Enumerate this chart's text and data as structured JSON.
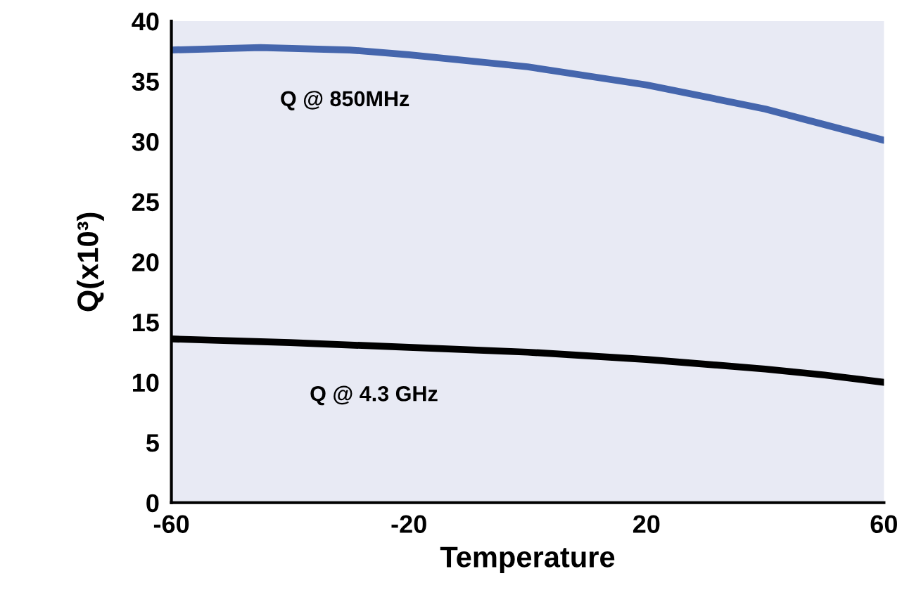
{
  "chart_data": {
    "type": "line",
    "xlabel": "Temperature",
    "ylabel": "Q(x10³)",
    "xlim": [
      -60,
      60
    ],
    "xticks": [
      -60,
      -20,
      20,
      60
    ],
    "ylim": [
      0,
      40
    ],
    "yticks": [
      0,
      5,
      10,
      15,
      20,
      25,
      30,
      35,
      40
    ],
    "grid": false,
    "legend": false,
    "marker": "none",
    "line_style": "solid",
    "series": [
      {
        "name": "Q @ 850MHz",
        "color": "#4566ad",
        "x": [
          -60,
          -45,
          -30,
          -20,
          0,
          20,
          40,
          60
        ],
        "values": [
          37.6,
          37.8,
          37.6,
          37.2,
          36.2,
          34.7,
          32.7,
          30.1
        ]
      },
      {
        "name": "Q @ 4.3 GHz",
        "color": "#000000",
        "x": [
          -60,
          -40,
          -20,
          0,
          20,
          40,
          50,
          60
        ],
        "values": [
          13.6,
          13.3,
          12.9,
          12.5,
          11.9,
          11.1,
          10.6,
          10.0
        ]
      }
    ]
  }
}
